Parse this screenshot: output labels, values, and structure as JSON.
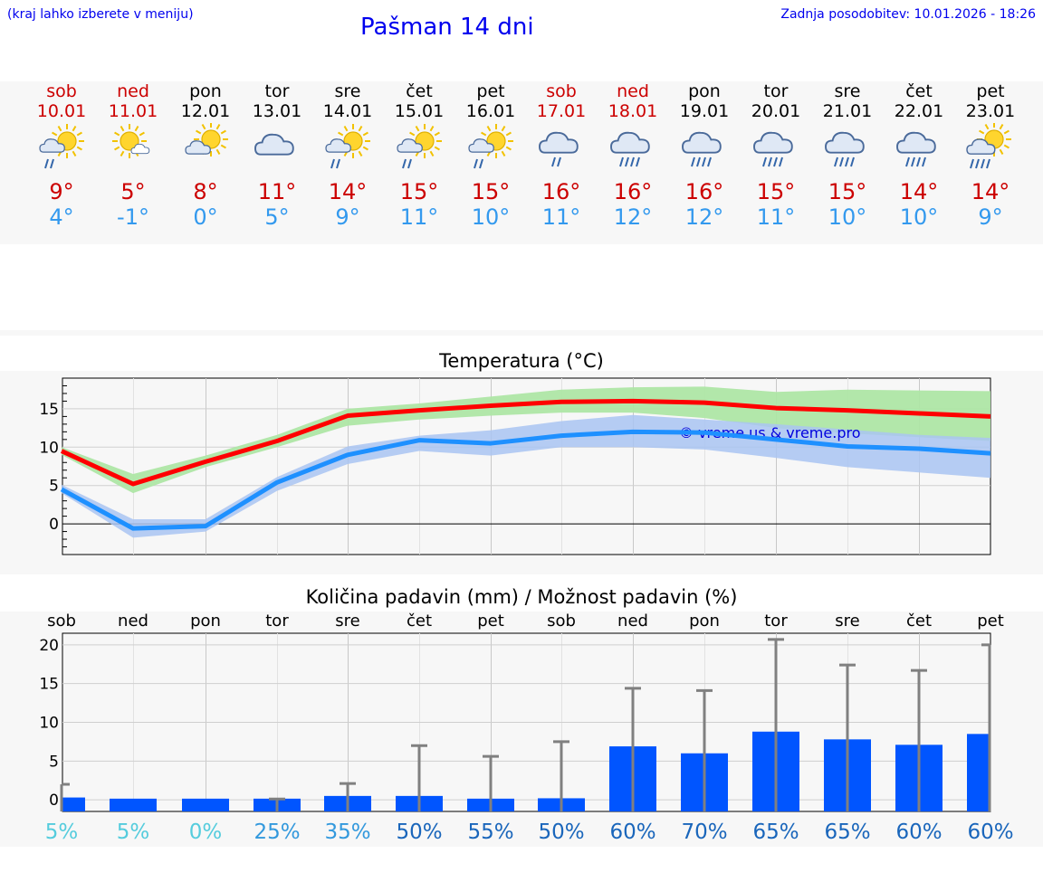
{
  "header": {
    "hint": "(kraj lahko izberete v meniju)",
    "title": "Pašman 14 dni",
    "updated": "Zadnja posodobitev: 10.01.2026 - 18:26"
  },
  "colors": {
    "weekend": "#cc0000",
    "weekday": "#000000",
    "tmax": "#cc0000",
    "tmin": "#3399ee",
    "max_line": "#ff0000",
    "min_line": "#1e90ff",
    "max_band": "#aee6a5",
    "min_band": "#a9c4f2",
    "bar": "#0055ff",
    "whisker": "#808080"
  },
  "days": [
    {
      "name": "sob",
      "date": "10.01",
      "weekend": true,
      "icon": "sun-cloud-rain-icon",
      "tmax": "9°",
      "tmin": "4°"
    },
    {
      "name": "ned",
      "date": "11.01",
      "weekend": true,
      "icon": "sun-small-cloud-icon",
      "tmax": "5°",
      "tmin": "-1°"
    },
    {
      "name": "pon",
      "date": "12.01",
      "weekend": false,
      "icon": "sun-cloud-icon",
      "tmax": "8°",
      "tmin": "0°"
    },
    {
      "name": "tor",
      "date": "13.01",
      "weekend": false,
      "icon": "cloud-icon",
      "tmax": "11°",
      "tmin": "5°"
    },
    {
      "name": "sre",
      "date": "14.01",
      "weekend": false,
      "icon": "sun-cloud-rain-icon",
      "tmax": "14°",
      "tmin": "9°"
    },
    {
      "name": "čet",
      "date": "15.01",
      "weekend": false,
      "icon": "sun-cloud-rain-icon",
      "tmax": "15°",
      "tmin": "11°"
    },
    {
      "name": "pet",
      "date": "16.01",
      "weekend": false,
      "icon": "sun-cloud-rain-icon",
      "tmax": "15°",
      "tmin": "10°"
    },
    {
      "name": "sob",
      "date": "17.01",
      "weekend": true,
      "icon": "cloud-rain-icon",
      "tmax": "16°",
      "tmin": "11°"
    },
    {
      "name": "ned",
      "date": "18.01",
      "weekend": true,
      "icon": "cloud-heavy-rain-icon",
      "tmax": "16°",
      "tmin": "12°"
    },
    {
      "name": "pon",
      "date": "19.01",
      "weekend": false,
      "icon": "cloud-heavy-rain-icon",
      "tmax": "16°",
      "tmin": "12°"
    },
    {
      "name": "tor",
      "date": "20.01",
      "weekend": false,
      "icon": "cloud-heavy-rain-icon",
      "tmax": "15°",
      "tmin": "11°"
    },
    {
      "name": "sre",
      "date": "21.01",
      "weekend": false,
      "icon": "cloud-heavy-rain-icon",
      "tmax": "15°",
      "tmin": "10°"
    },
    {
      "name": "čet",
      "date": "22.01",
      "weekend": false,
      "icon": "cloud-heavy-rain-icon",
      "tmax": "14°",
      "tmin": "10°"
    },
    {
      "name": "pet",
      "date": "23.01",
      "weekend": false,
      "icon": "sun-cloud-heavy-rain-icon",
      "tmax": "14°",
      "tmin": "9°"
    }
  ],
  "chart_data": [
    {
      "type": "line",
      "title": "Temperatura (°C)",
      "watermark": "© vreme.us & vreme.pro",
      "ylim": [
        -4,
        19
      ],
      "yticks": [
        0,
        5,
        10,
        15
      ],
      "grid": true,
      "x_days": [
        0,
        1,
        2,
        3,
        4,
        5,
        6,
        7,
        8,
        9,
        10,
        11,
        12,
        13
      ],
      "series": [
        {
          "name": "max",
          "values": [
            9.5,
            5.2,
            8.1,
            10.8,
            14.1,
            14.8,
            15.4,
            15.9,
            16.0,
            15.8,
            15.1,
            14.8,
            14.4,
            14.0
          ],
          "band_low": [
            9.0,
            4.0,
            7.4,
            10.0,
            12.8,
            13.6,
            14.1,
            14.5,
            14.5,
            13.8,
            12.5,
            11.8,
            11.3,
            10.8
          ],
          "band_high": [
            10.0,
            6.5,
            8.9,
            11.6,
            15.0,
            15.7,
            16.6,
            17.5,
            17.8,
            17.9,
            17.2,
            17.5,
            17.4,
            17.3
          ]
        },
        {
          "name": "min",
          "values": [
            4.5,
            -0.6,
            -0.3,
            5.4,
            9.0,
            10.9,
            10.5,
            11.5,
            12.0,
            11.9,
            11.0,
            10.1,
            9.8,
            9.2
          ],
          "band_low": [
            4.0,
            -1.8,
            -1.0,
            4.3,
            7.8,
            9.5,
            8.9,
            10.0,
            10.0,
            9.7,
            8.6,
            7.4,
            6.7,
            6.0
          ],
          "band_high": [
            5.1,
            0.6,
            0.6,
            6.1,
            10.1,
            11.5,
            12.2,
            13.4,
            14.2,
            13.6,
            13.0,
            12.3,
            11.6,
            11.2
          ]
        }
      ]
    },
    {
      "type": "bar",
      "title": "Količina padavin (mm) / Možnost padavin (%)",
      "categories": [
        "sob",
        "ned",
        "pon",
        "tor",
        "sre",
        "čet",
        "pet",
        "sob",
        "ned",
        "pon",
        "tor",
        "sre",
        "čet",
        "pet"
      ],
      "ylim": [
        -1.5,
        21.5
      ],
      "yticks": [
        0,
        5,
        10,
        15,
        20
      ],
      "values": [
        0.3,
        0,
        0,
        0,
        0.5,
        0.5,
        0,
        0.2,
        6.9,
        6.0,
        8.8,
        7.8,
        7.1,
        8.5
      ],
      "upper": [
        2.0,
        0,
        0,
        0.1,
        2.1,
        7.0,
        5.6,
        7.5,
        14.4,
        14.1,
        20.7,
        17.4,
        16.7,
        20.0
      ],
      "chance": [
        "5%",
        "5%",
        "0%",
        "25%",
        "35%",
        "50%",
        "55%",
        "50%",
        "60%",
        "70%",
        "65%",
        "65%",
        "60%",
        "60%"
      ],
      "chance_colors": [
        "#55ccdd",
        "#55ccdd",
        "#55ccdd",
        "#3399dd",
        "#3399dd",
        "#1a66bb",
        "#1a66bb",
        "#1a66bb",
        "#1a66bb",
        "#1a66bb",
        "#1a66bb",
        "#1a66bb",
        "#1a66bb",
        "#1a66bb"
      ]
    }
  ]
}
